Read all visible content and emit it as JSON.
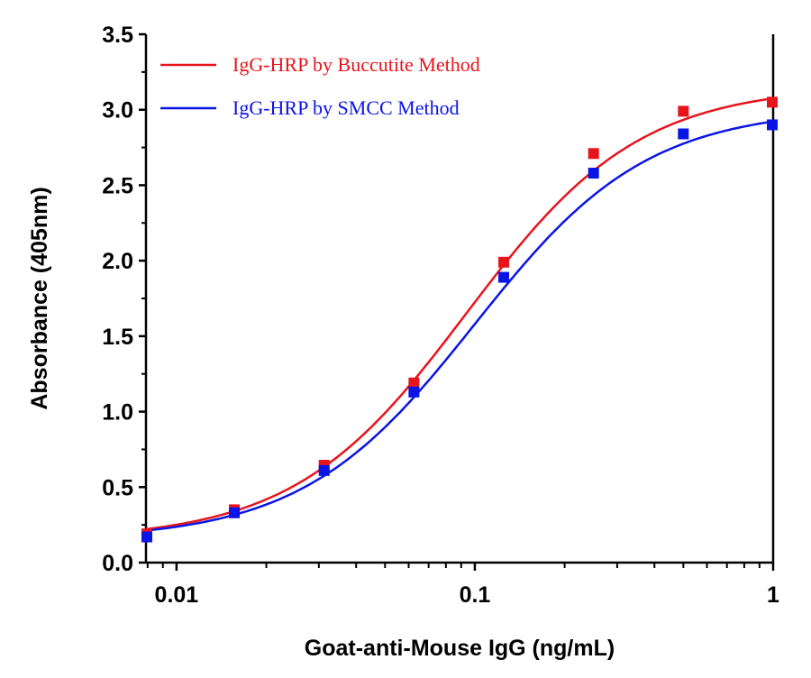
{
  "chart_data": {
    "type": "scatter",
    "xscale": "log",
    "xlabel": "Goat-anti-Mouse IgG (ng/mL)",
    "ylabel": "Absorbance (405nm)",
    "xlim": [
      0.0079,
      1
    ],
    "ylim": [
      0,
      3.5
    ],
    "x_ticks": [
      {
        "value": 0.01,
        "label": "0.01"
      },
      {
        "value": 0.1,
        "label": "0.1"
      },
      {
        "value": 1,
        "label": "1"
      }
    ],
    "y_ticks": [
      {
        "value": 0,
        "label": "0.0"
      },
      {
        "value": 0.5,
        "label": "0.5"
      },
      {
        "value": 1,
        "label": "1.0"
      },
      {
        "value": 1.5,
        "label": "1.5"
      },
      {
        "value": 2,
        "label": "2.0"
      },
      {
        "value": 2.5,
        "label": "2.5"
      },
      {
        "value": 3,
        "label": "3.0"
      },
      {
        "value": 3.5,
        "label": "3.5"
      }
    ],
    "grid": false,
    "legend_position": "top-left",
    "x": [
      0.0078125,
      0.015625,
      0.03125,
      0.0625,
      0.125,
      0.25,
      0.5,
      1
    ],
    "series": [
      {
        "name": "IgG-HRP by Buccutite Method",
        "color": "#e8141b",
        "values": [
          0.19,
          0.35,
          0.645,
          1.19,
          1.99,
          2.71,
          2.99,
          3.05
        ],
        "fit": {
          "model": "4PL",
          "bottom": 0.15,
          "top": 3.16,
          "ec50": 0.094,
          "hill": 1.5
        }
      },
      {
        "name": "IgG-HRP by SMCC Method",
        "color": "#0a14e6",
        "values": [
          0.17,
          0.33,
          0.61,
          1.13,
          1.89,
          2.58,
          2.84,
          2.9
        ],
        "fit": {
          "model": "4PL",
          "bottom": 0.15,
          "top": 3.01,
          "ec50": 0.1,
          "hill": 1.5
        }
      }
    ]
  }
}
